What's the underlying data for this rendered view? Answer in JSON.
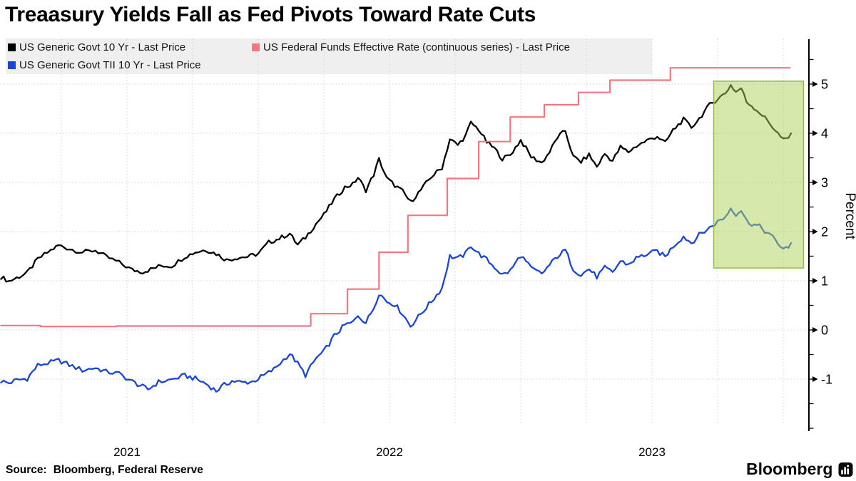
{
  "title": "Treaasury Yields Fall as Fed Pivots Toward Rate Cuts",
  "source": {
    "label": "Source:",
    "text": "Bloomberg, Federal Reserve"
  },
  "logo": {
    "text": "Bloomberg",
    "icon": "bloomberg-terminal-icon"
  },
  "legend": {
    "bg_color": "#efefef",
    "items": [
      {
        "series": 0
      },
      {
        "series": 2
      },
      {
        "series": 1
      }
    ]
  },
  "chart_data": {
    "type": "line",
    "title": "Treaasury Yields Fall as Fed Pivots Toward Rate Cuts",
    "xlabel": "",
    "ylabel": "Percent",
    "ylim": [
      -2,
      5.5
    ],
    "xlim_years": [
      2021.02,
      2024.03
    ],
    "x_ticks": [
      "2021",
      "2022",
      "2023"
    ],
    "y_ticks": [
      5,
      4,
      3,
      2,
      1,
      0,
      -1
    ],
    "grid": {
      "h_values": [
        -1,
        0,
        1,
        2,
        3,
        4,
        5
      ],
      "v_start": 2021.25,
      "v_end": 2024.0,
      "v_step": 0.25,
      "on": true
    },
    "legend_position": "top-left",
    "highlight_region": {
      "label": "fed-pivot-highlight",
      "t0": 2023.735,
      "t1": 2024.077,
      "v0": 1.26,
      "v1": 5.06,
      "fill": "rgba(173,210,90,0.5)",
      "stroke": "#94b94e"
    },
    "series": [
      {
        "name": "US Generic Govt 10 Yr - Last Price",
        "slug": "us-generic-govt-10yr",
        "color": "#000000",
        "width": 2.3,
        "jitter": 0.045,
        "step": false,
        "points": [
          [
            2021.02,
            1.08
          ],
          [
            2021.05,
            0.99
          ],
          [
            2021.08,
            1.06
          ],
          [
            2021.12,
            1.16
          ],
          [
            2021.16,
            1.44
          ],
          [
            2021.21,
            1.62
          ],
          [
            2021.24,
            1.72
          ],
          [
            2021.28,
            1.65
          ],
          [
            2021.33,
            1.58
          ],
          [
            2021.38,
            1.62
          ],
          [
            2021.42,
            1.49
          ],
          [
            2021.47,
            1.37
          ],
          [
            2021.52,
            1.22
          ],
          [
            2021.56,
            1.18
          ],
          [
            2021.6,
            1.25
          ],
          [
            2021.63,
            1.31
          ],
          [
            2021.67,
            1.3
          ],
          [
            2021.72,
            1.49
          ],
          [
            2021.76,
            1.58
          ],
          [
            2021.8,
            1.63
          ],
          [
            2021.84,
            1.55
          ],
          [
            2021.88,
            1.42
          ],
          [
            2021.92,
            1.47
          ],
          [
            2021.96,
            1.49
          ],
          [
            2022.0,
            1.55
          ],
          [
            2022.04,
            1.78
          ],
          [
            2022.08,
            1.86
          ],
          [
            2022.12,
            1.96
          ],
          [
            2022.15,
            1.73
          ],
          [
            2022.18,
            1.88
          ],
          [
            2022.22,
            2.16
          ],
          [
            2022.25,
            2.34
          ],
          [
            2022.29,
            2.66
          ],
          [
            2022.33,
            2.9
          ],
          [
            2022.36,
            2.96
          ],
          [
            2022.38,
            3.1
          ],
          [
            2022.41,
            2.84
          ],
          [
            2022.44,
            3.16
          ],
          [
            2022.46,
            3.47
          ],
          [
            2022.49,
            3.08
          ],
          [
            2022.52,
            2.94
          ],
          [
            2022.55,
            2.82
          ],
          [
            2022.58,
            2.6
          ],
          [
            2022.62,
            2.85
          ],
          [
            2022.66,
            3.12
          ],
          [
            2022.7,
            3.3
          ],
          [
            2022.73,
            3.88
          ],
          [
            2022.76,
            3.76
          ],
          [
            2022.79,
            3.95
          ],
          [
            2022.81,
            4.21
          ],
          [
            2022.84,
            4.08
          ],
          [
            2022.87,
            3.82
          ],
          [
            2022.9,
            3.69
          ],
          [
            2022.93,
            3.48
          ],
          [
            2022.96,
            3.56
          ],
          [
            2023.0,
            3.86
          ],
          [
            2023.04,
            3.52
          ],
          [
            2023.08,
            3.4
          ],
          [
            2023.11,
            3.62
          ],
          [
            2023.14,
            3.92
          ],
          [
            2023.17,
            4.05
          ],
          [
            2023.2,
            3.52
          ],
          [
            2023.23,
            3.42
          ],
          [
            2023.26,
            3.56
          ],
          [
            2023.29,
            3.32
          ],
          [
            2023.32,
            3.58
          ],
          [
            2023.35,
            3.44
          ],
          [
            2023.38,
            3.72
          ],
          [
            2023.41,
            3.62
          ],
          [
            2023.44,
            3.74
          ],
          [
            2023.48,
            3.85
          ],
          [
            2023.52,
            3.94
          ],
          [
            2023.55,
            3.8
          ],
          [
            2023.58,
            4.06
          ],
          [
            2023.62,
            4.28
          ],
          [
            2023.65,
            4.12
          ],
          [
            2023.68,
            4.3
          ],
          [
            2023.72,
            4.58
          ],
          [
            2023.75,
            4.7
          ],
          [
            2023.78,
            4.82
          ],
          [
            2023.8,
            4.98
          ],
          [
            2023.82,
            4.84
          ],
          [
            2023.84,
            4.92
          ],
          [
            2023.86,
            4.64
          ],
          [
            2023.88,
            4.56
          ],
          [
            2023.91,
            4.42
          ],
          [
            2023.94,
            4.26
          ],
          [
            2023.97,
            4.06
          ],
          [
            2024.0,
            3.86
          ],
          [
            2024.02,
            3.9
          ],
          [
            2024.03,
            4.0
          ]
        ]
      },
      {
        "name": "US Generic Govt TII 10 Yr - Last Price",
        "slug": "us-generic-govt-tii-10yr",
        "color": "#1a46d8",
        "width": 2.3,
        "jitter": 0.05,
        "step": false,
        "points": [
          [
            2021.02,
            -1.04
          ],
          [
            2021.05,
            -1.08
          ],
          [
            2021.08,
            -1.02
          ],
          [
            2021.12,
            -0.99
          ],
          [
            2021.16,
            -0.72
          ],
          [
            2021.21,
            -0.66
          ],
          [
            2021.24,
            -0.62
          ],
          [
            2021.28,
            -0.71
          ],
          [
            2021.33,
            -0.82
          ],
          [
            2021.38,
            -0.77
          ],
          [
            2021.42,
            -0.85
          ],
          [
            2021.47,
            -0.89
          ],
          [
            2021.52,
            -1.05
          ],
          [
            2021.55,
            -1.13
          ],
          [
            2021.58,
            -1.21
          ],
          [
            2021.62,
            -1.06
          ],
          [
            2021.67,
            -1.01
          ],
          [
            2021.72,
            -0.93
          ],
          [
            2021.76,
            -0.99
          ],
          [
            2021.8,
            -1.09
          ],
          [
            2021.84,
            -1.24
          ],
          [
            2021.87,
            -1.12
          ],
          [
            2021.9,
            -1.04
          ],
          [
            2021.94,
            -1.07
          ],
          [
            2021.98,
            -1.05
          ],
          [
            2022.02,
            -0.93
          ],
          [
            2022.06,
            -0.8
          ],
          [
            2022.12,
            -0.48
          ],
          [
            2022.15,
            -0.68
          ],
          [
            2022.18,
            -0.92
          ],
          [
            2022.22,
            -0.58
          ],
          [
            2022.25,
            -0.44
          ],
          [
            2022.29,
            -0.12
          ],
          [
            2022.33,
            0.1
          ],
          [
            2022.36,
            0.15
          ],
          [
            2022.38,
            0.3
          ],
          [
            2022.41,
            0.15
          ],
          [
            2022.44,
            0.45
          ],
          [
            2022.46,
            0.75
          ],
          [
            2022.49,
            0.58
          ],
          [
            2022.52,
            0.52
          ],
          [
            2022.55,
            0.33
          ],
          [
            2022.58,
            0.08
          ],
          [
            2022.62,
            0.33
          ],
          [
            2022.66,
            0.58
          ],
          [
            2022.7,
            0.85
          ],
          [
            2022.73,
            1.5
          ],
          [
            2022.76,
            1.45
          ],
          [
            2022.79,
            1.55
          ],
          [
            2022.81,
            1.72
          ],
          [
            2022.84,
            1.55
          ],
          [
            2022.87,
            1.43
          ],
          [
            2022.9,
            1.28
          ],
          [
            2022.93,
            1.12
          ],
          [
            2022.96,
            1.2
          ],
          [
            2023.0,
            1.52
          ],
          [
            2023.04,
            1.25
          ],
          [
            2023.08,
            1.14
          ],
          [
            2023.11,
            1.32
          ],
          [
            2023.14,
            1.5
          ],
          [
            2023.17,
            1.62
          ],
          [
            2023.2,
            1.24
          ],
          [
            2023.23,
            1.12
          ],
          [
            2023.26,
            1.24
          ],
          [
            2023.29,
            1.08
          ],
          [
            2023.32,
            1.26
          ],
          [
            2023.35,
            1.17
          ],
          [
            2023.38,
            1.4
          ],
          [
            2023.41,
            1.33
          ],
          [
            2023.44,
            1.46
          ],
          [
            2023.48,
            1.54
          ],
          [
            2023.52,
            1.6
          ],
          [
            2023.55,
            1.49
          ],
          [
            2023.58,
            1.7
          ],
          [
            2023.62,
            1.9
          ],
          [
            2023.65,
            1.77
          ],
          [
            2023.68,
            1.93
          ],
          [
            2023.72,
            2.08
          ],
          [
            2023.75,
            2.2
          ],
          [
            2023.78,
            2.3
          ],
          [
            2023.8,
            2.48
          ],
          [
            2023.82,
            2.36
          ],
          [
            2023.84,
            2.44
          ],
          [
            2023.86,
            2.22
          ],
          [
            2023.88,
            2.16
          ],
          [
            2023.91,
            2.1
          ],
          [
            2023.94,
            1.97
          ],
          [
            2023.97,
            1.83
          ],
          [
            2024.0,
            1.64
          ],
          [
            2024.02,
            1.66
          ],
          [
            2024.03,
            1.77
          ]
        ]
      },
      {
        "name": "US Federal Funds Effective Rate (continuous series) - Last Price",
        "slug": "fed-funds-effective-rate",
        "color": "#f4767e",
        "width": 2.2,
        "jitter": 0,
        "step": true,
        "points": [
          [
            2021.02,
            0.09
          ],
          [
            2021.17,
            0.07
          ],
          [
            2021.46,
            0.08
          ],
          [
            2022.2,
            0.33
          ],
          [
            2022.34,
            0.83
          ],
          [
            2022.46,
            1.58
          ],
          [
            2022.57,
            2.33
          ],
          [
            2022.72,
            3.08
          ],
          [
            2022.84,
            3.83
          ],
          [
            2022.96,
            4.33
          ],
          [
            2023.09,
            4.58
          ],
          [
            2023.22,
            4.83
          ],
          [
            2023.34,
            5.08
          ],
          [
            2023.57,
            5.33
          ],
          [
            2024.025,
            5.33
          ]
        ]
      }
    ]
  }
}
